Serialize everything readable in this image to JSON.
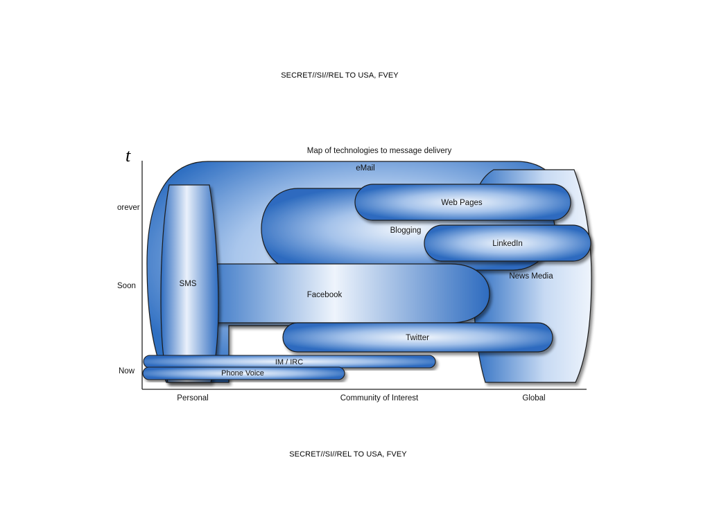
{
  "banners": {
    "top": "SECRET//SI//REL TO USA, FVEY",
    "bottom": "SECRET//SI//REL TO USA, FVEY"
  },
  "diagram": {
    "title": "Map of technologies to message delivery",
    "time_axis_symbol": "t",
    "y_levels": [
      "orever",
      "Soon",
      "Now"
    ],
    "x_levels": [
      "Personal",
      "Community of Interest",
      "Global"
    ],
    "technologies": {
      "email": "eMail",
      "news_media": "News Media",
      "blogging": "Blogging",
      "web_pages": "Web Pages",
      "linkedin": "LinkedIn",
      "sms": "SMS",
      "facebook": "Facebook",
      "twitter": "Twitter",
      "im_irc": "IM / IRC",
      "phone_voice": "Phone Voice"
    },
    "colors": {
      "shape_light": "#eef4fc",
      "shape_mid": "#8fb3e3",
      "shape_dark": "#2f6fc2",
      "outline": "#1a1a1a",
      "shadow": "#8a8a8a"
    }
  }
}
